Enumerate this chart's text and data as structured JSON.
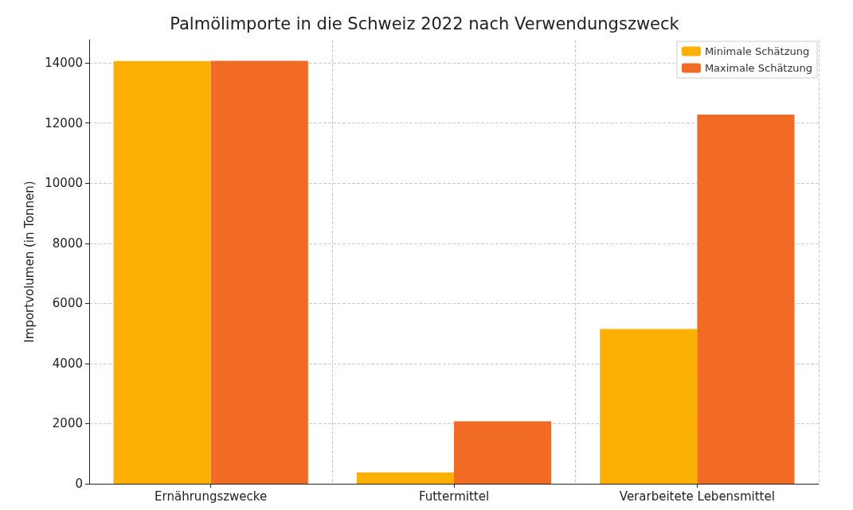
{
  "chart_data": {
    "type": "bar",
    "title": "Palmölimporte in die Schweiz 2022 nach Verwendungszweck",
    "ylabel": "Importvolumen (in Tonnen)",
    "categories": [
      "Ernährungszwecke",
      "Futtermittel",
      "Verarbeitete Lebensmittel"
    ],
    "series": [
      {
        "name": "Minimale Schätzung",
        "color": "#fbb003",
        "values": [
          14060,
          380,
          5150
        ]
      },
      {
        "name": "Maximale Schätzung",
        "color": "#f26b24",
        "values": [
          14070,
          2080,
          12280
        ]
      }
    ],
    "ylim": [
      0,
      14770
    ],
    "yticks": [
      0,
      2000,
      4000,
      6000,
      8000,
      10000,
      12000,
      14000
    ],
    "grid": true,
    "legend": "top right"
  }
}
